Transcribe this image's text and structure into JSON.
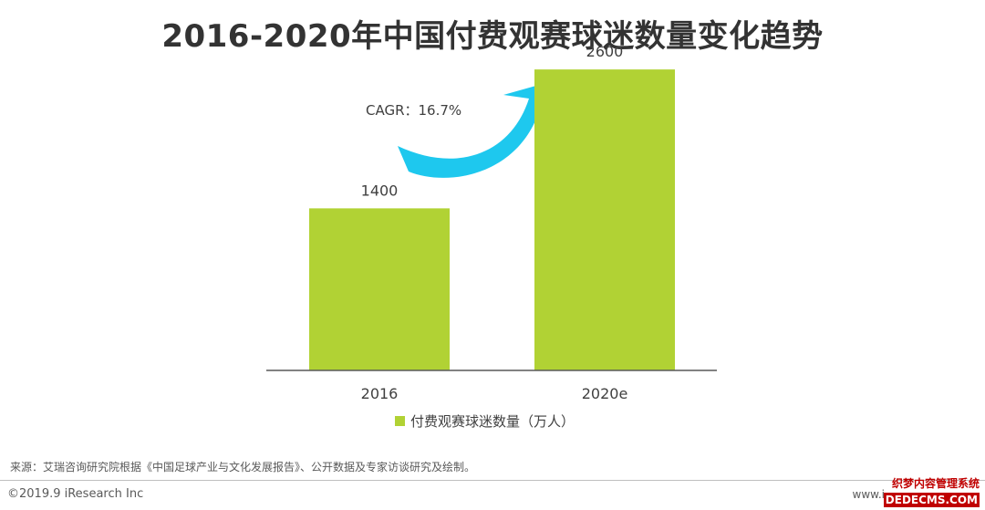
{
  "title": "2016-2020年中国付费观赛球迷数量变化趋势",
  "cagr_label": "CAGR：16.7%",
  "colors": {
    "bar": "#b1d234",
    "arrow": "#1ec8ee",
    "axis": "#595959",
    "title": "#333333"
  },
  "chart_data": {
    "type": "bar",
    "title": "2016-2020年中国付费观赛球迷数量变化趋势",
    "categories": [
      "2016",
      "2020e"
    ],
    "series": [
      {
        "name": "付费观赛球迷数量（万人）",
        "values": [
          1400,
          2600
        ]
      }
    ],
    "data_labels": [
      "1400",
      "2600"
    ],
    "ylim": [
      0,
      3200
    ],
    "grid": false,
    "legend_position": "bottom",
    "annotation": "CAGR：16.7%"
  },
  "source_note": "来源：艾瑞咨询研究院根据《中国足球产业与文化发展报告》、公开数据及专家访谈研究及绘制。",
  "copyright": "©2019.9 iResearch Inc",
  "website": "www.i",
  "watermark": {
    "line1": "织梦内容管理系统",
    "line2": "DEDECMS.COM"
  }
}
